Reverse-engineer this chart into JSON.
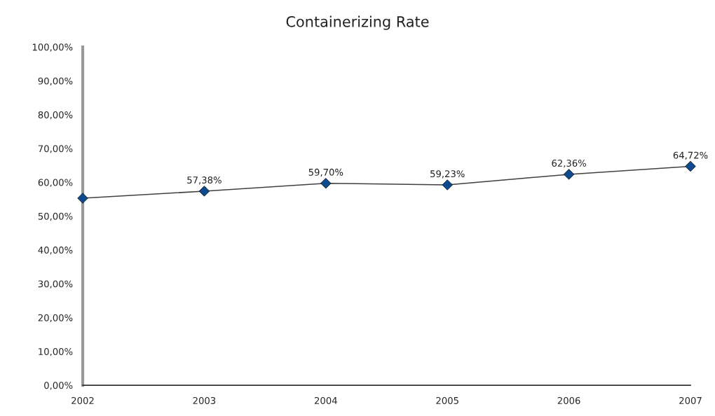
{
  "chart_data": {
    "type": "line",
    "title": "Containerizing Rate",
    "x": [
      2002,
      2003,
      2004,
      2005,
      2006,
      2007
    ],
    "series": [
      {
        "color": "#0d4a8f",
        "values": [
          55.3,
          57.38,
          59.7,
          59.23,
          62.36,
          64.72
        ],
        "value_labels": [
          null,
          "57,38%",
          "59,70%",
          "59,23%",
          "62,36%",
          "64,72%"
        ]
      }
    ],
    "xlim": [
      2002,
      2007
    ],
    "xticks": [
      2002,
      2003,
      2004,
      2005,
      2006,
      2007
    ],
    "ylim": [
      0,
      100
    ],
    "yticks": [
      {
        "value": 0,
        "label": "0,00%"
      },
      {
        "value": 10,
        "label": "10,00%"
      },
      {
        "value": 20,
        "label": "20,00%"
      },
      {
        "value": 30,
        "label": "30,00%"
      },
      {
        "value": 40,
        "label": "40,00%"
      },
      {
        "value": 50,
        "label": "50,00%"
      },
      {
        "value": 60,
        "label": "60,00%"
      },
      {
        "value": 70,
        "label": "70,00%"
      },
      {
        "value": 80,
        "label": "80,00%"
      },
      {
        "value": 90,
        "label": "90,00%"
      },
      {
        "value": 100,
        "label": "100,00%"
      }
    ],
    "marker": "diamond",
    "line_style": "solid",
    "grid": false,
    "legend": false
  }
}
